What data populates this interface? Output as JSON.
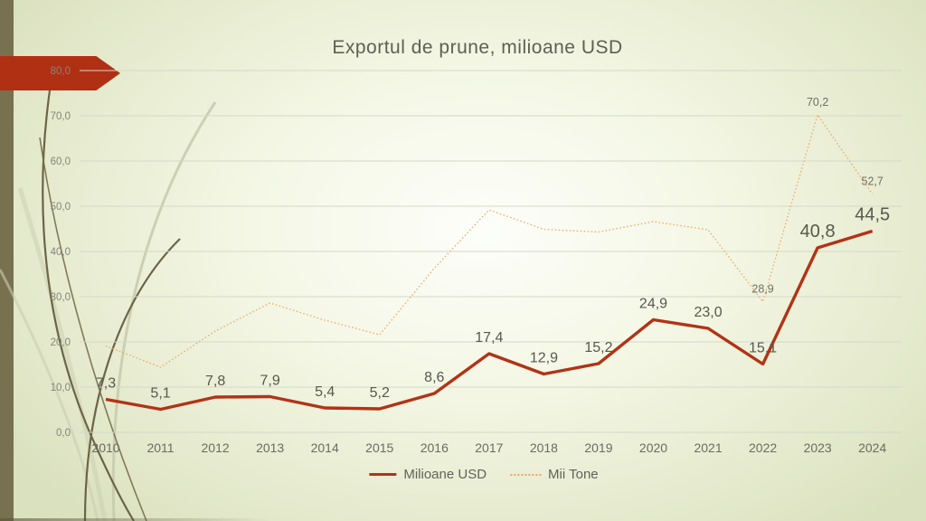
{
  "slide": {
    "title": "Exportul de prune, milioane USD",
    "colors": {
      "usd_line": "#b23316",
      "tone_line": "#eca763",
      "banner": "#b03014",
      "left_bar": "#78714f",
      "grid": "#d4d8c8",
      "data_label": "#56584f",
      "axis_label": "#85857b"
    }
  },
  "chart_data": {
    "type": "line",
    "title": "Exportul de prune, milioane USD",
    "x": [
      "2010",
      "2011",
      "2012",
      "2013",
      "2014",
      "2015",
      "2016",
      "2017",
      "2018",
      "2019",
      "2020",
      "2021",
      "2022",
      "2023",
      "2024"
    ],
    "series": [
      {
        "name": "Milioane USD",
        "style": "solid",
        "color": "#b23316",
        "width": 3.4,
        "values": [
          7.3,
          5.1,
          7.8,
          7.9,
          5.4,
          5.2,
          8.6,
          17.4,
          12.9,
          15.2,
          24.9,
          23.0,
          15.1,
          40.8,
          44.5
        ],
        "labels": [
          "7,3",
          "5,1",
          "7,8",
          "7,9",
          "5,4",
          "5,2",
          "8,6",
          "17,4",
          "12,9",
          "15,2",
          "24,9",
          "23,0",
          "15,1",
          "40,8",
          "44,5"
        ],
        "big_label_indices": [
          13,
          14
        ]
      },
      {
        "name": "Mii Tone",
        "style": "dotted",
        "color": "#eca763",
        "width": 1.3,
        "values": [
          19.1,
          14.4,
          22.4,
          28.6,
          24.8,
          21.6,
          36.3,
          49.2,
          44.9,
          44.3,
          46.6,
          44.8,
          28.9,
          70.2,
          52.7
        ],
        "labels": [
          null,
          null,
          null,
          null,
          null,
          null,
          null,
          null,
          null,
          null,
          null,
          null,
          "28,9",
          "70,2",
          "52,7"
        ],
        "big_label_indices": []
      }
    ],
    "ylim": [
      0,
      80
    ],
    "ytick_step": 10,
    "ytick_labels": [
      "0,0",
      "10,0",
      "20,0",
      "30,0",
      "40,0",
      "50,0",
      "60,0",
      "70,0",
      "80,0"
    ],
    "grid": true,
    "legend_position": "bottom"
  },
  "legend": {
    "items": [
      {
        "label": "Milioane USD"
      },
      {
        "label": "Mii Tone"
      }
    ]
  }
}
